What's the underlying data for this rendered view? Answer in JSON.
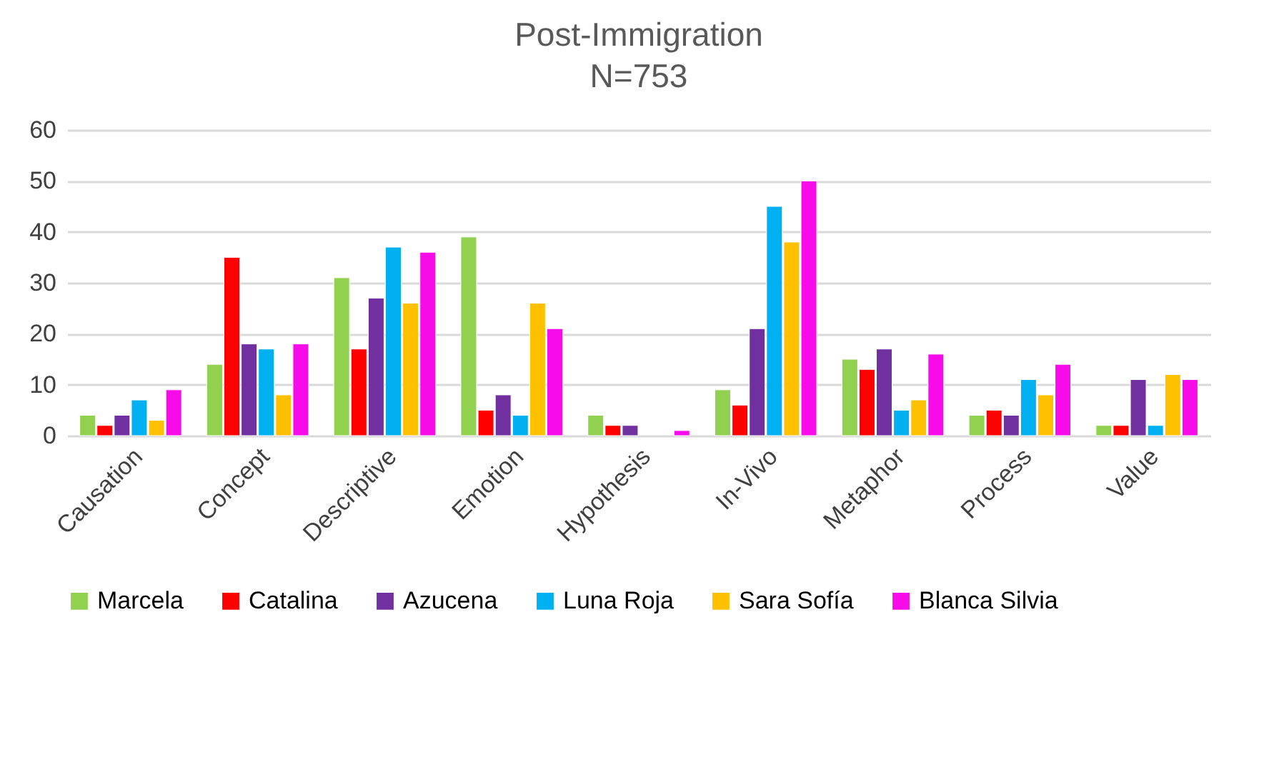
{
  "chart_data": {
    "type": "bar",
    "title": "Post-Immigration",
    "subtitle": "N=753",
    "categories": [
      "Causation",
      "Concept",
      "Descriptive",
      "Emotion",
      "Hypothesis",
      "In-Vivo",
      "Metaphor",
      "Process",
      "Value"
    ],
    "series": [
      {
        "name": "Marcela",
        "color": "#92d050",
        "values": [
          4,
          14,
          31,
          39,
          4,
          9,
          15,
          4,
          2
        ]
      },
      {
        "name": "Catalina",
        "color": "#ff0000",
        "values": [
          2,
          35,
          17,
          5,
          2,
          6,
          13,
          5,
          2
        ]
      },
      {
        "name": "Azucena",
        "color": "#7030a0",
        "values": [
          4,
          18,
          27,
          8,
          2,
          21,
          17,
          4,
          11
        ]
      },
      {
        "name": "Luna Roja",
        "color": "#00b0f0",
        "values": [
          7,
          17,
          37,
          4,
          null,
          45,
          5,
          11,
          2
        ]
      },
      {
        "name": "Sara Sofía",
        "color": "#ffc000",
        "values": [
          3,
          8,
          26,
          26,
          null,
          38,
          7,
          8,
          12
        ]
      },
      {
        "name": "Blanca Silvia",
        "color": "#f70ce9",
        "values": [
          9,
          18,
          36,
          21,
          1,
          50,
          16,
          14,
          11
        ]
      }
    ],
    "ylim": [
      0,
      60
    ],
    "yticks": [
      0,
      10,
      20,
      30,
      40,
      50,
      60
    ],
    "grid": "y",
    "legend": "bottom"
  }
}
